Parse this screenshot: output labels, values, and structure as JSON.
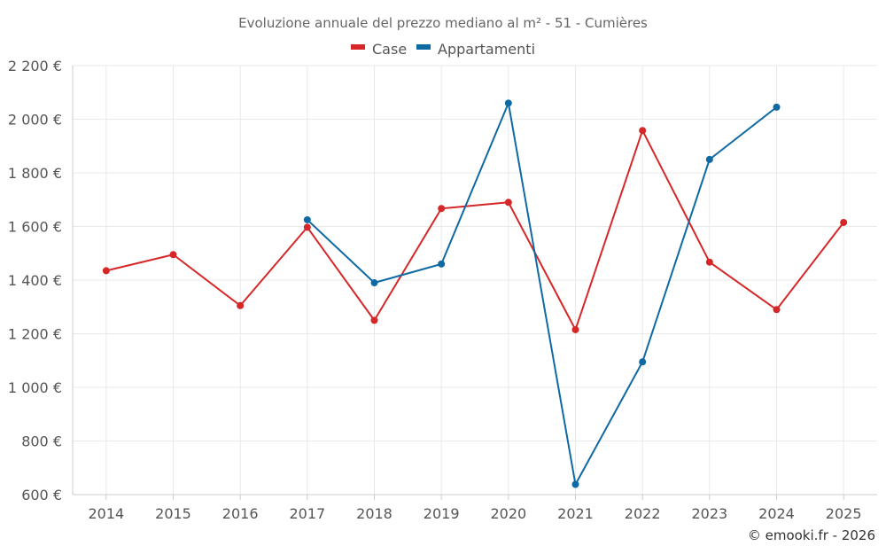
{
  "chart_data": {
    "type": "line",
    "title": "Evoluzione annuale del prezzo mediano al m² - 51 - Cumières",
    "categories": [
      "2014",
      "2015",
      "2016",
      "2017",
      "2018",
      "2019",
      "2020",
      "2021",
      "2022",
      "2023",
      "2024",
      "2025"
    ],
    "yticks": [
      {
        "value": 600,
        "label": "600 €"
      },
      {
        "value": 800,
        "label": "800 €"
      },
      {
        "value": 1000,
        "label": "1 000 €"
      },
      {
        "value": 1200,
        "label": "1 200 €"
      },
      {
        "value": 1400,
        "label": "1 400 €"
      },
      {
        "value": 1600,
        "label": "1 600 €"
      },
      {
        "value": 1800,
        "label": "1 800 €"
      },
      {
        "value": 2000,
        "label": "2 000 €"
      },
      {
        "value": 2200,
        "label": "2 200 €"
      }
    ],
    "ylim": [
      600,
      2200
    ],
    "xlabel": "",
    "ylabel": "",
    "grid": true,
    "legend_position": "top-center",
    "series": [
      {
        "name": "Case",
        "color": "#d62728",
        "values": [
          1435,
          1495,
          1305,
          1597,
          1250,
          1667,
          1690,
          1215,
          1958,
          1467,
          1290,
          1615
        ]
      },
      {
        "name": "Appartamenti",
        "color": "#0f6aa4",
        "values": [
          null,
          null,
          null,
          1625,
          1390,
          1460,
          2060,
          638,
          1095,
          1850,
          2045,
          null
        ]
      }
    ],
    "credit": "© emooki.fr - 2026"
  }
}
